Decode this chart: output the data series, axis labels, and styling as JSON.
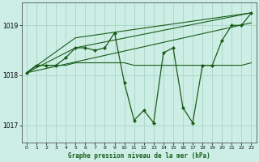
{
  "title": "Graphe pression niveau de la mer (hPa)",
  "bg_color": "#cceee4",
  "grid_color": "#aad4c8",
  "line_color": "#1a5c1a",
  "xlim": [
    -0.5,
    23.5
  ],
  "ylim": [
    1016.65,
    1019.45
  ],
  "yticks": [
    1017,
    1018,
    1019
  ],
  "xticks": [
    0,
    1,
    2,
    3,
    4,
    5,
    6,
    7,
    8,
    9,
    10,
    11,
    12,
    13,
    14,
    15,
    16,
    17,
    18,
    19,
    20,
    21,
    22,
    23
  ],
  "series": [
    {
      "x": [
        0,
        1,
        2,
        3,
        4,
        5,
        6,
        7,
        8,
        9,
        10,
        11,
        12,
        13,
        14,
        15,
        16,
        17,
        18,
        19,
        20,
        21,
        22,
        23
      ],
      "y": [
        1018.05,
        1018.2,
        1018.2,
        1018.2,
        1018.35,
        1018.55,
        1018.55,
        1018.5,
        1018.55,
        1018.85,
        1017.85,
        1017.1,
        1017.3,
        1017.05,
        1018.45,
        1018.55,
        1017.35,
        1017.05,
        1018.2,
        1018.2,
        1018.7,
        1019.0,
        1019.0,
        1019.25
      ],
      "marker": "D",
      "markersize": 2.0,
      "linewidth": 0.9
    },
    {
      "x": [
        0,
        1,
        2,
        3,
        4,
        5,
        6,
        7,
        8,
        9,
        10,
        11,
        12,
        13,
        14,
        15,
        16,
        17,
        18,
        19,
        20,
        21,
        22,
        23
      ],
      "y": [
        1018.05,
        1018.2,
        1018.2,
        1018.2,
        1018.2,
        1018.25,
        1018.25,
        1018.25,
        1018.25,
        1018.25,
        1018.25,
        1018.2,
        1018.2,
        1018.2,
        1018.2,
        1018.2,
        1018.2,
        1018.2,
        1018.2,
        1018.2,
        1018.2,
        1018.2,
        1018.2,
        1018.25
      ],
      "marker": null,
      "markersize": 0,
      "linewidth": 0.8
    },
    {
      "x": [
        0,
        5,
        23
      ],
      "y": [
        1018.05,
        1018.75,
        1019.25
      ],
      "marker": null,
      "markersize": 0,
      "linewidth": 0.8
    },
    {
      "x": [
        0,
        23
      ],
      "y": [
        1018.05,
        1019.05
      ],
      "marker": null,
      "markersize": 0,
      "linewidth": 0.8
    },
    {
      "x": [
        0,
        5,
        23
      ],
      "y": [
        1018.05,
        1018.55,
        1019.25
      ],
      "marker": null,
      "markersize": 0,
      "linewidth": 0.8
    }
  ]
}
